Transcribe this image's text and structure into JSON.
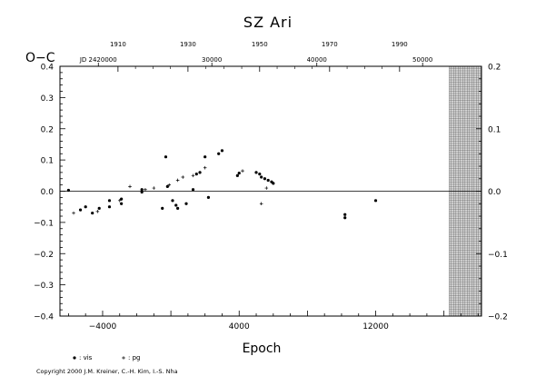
{
  "chart_data": {
    "type": "scatter",
    "title": "SZ Ari",
    "xlabel": "Epoch",
    "ylabel": "O−C",
    "xlim": [
      -6500,
      18200
    ],
    "ylim": [
      -0.4,
      0.4
    ],
    "xticks": [
      {
        "value": -4000,
        "label": "−4000"
      },
      {
        "value": 4000,
        "label": "4000"
      },
      {
        "value": 12000,
        "label": "12000"
      }
    ],
    "yticks_left": [
      {
        "value": 0.4,
        "label": "0.4"
      },
      {
        "value": 0.3,
        "label": "0.3"
      },
      {
        "value": 0.2,
        "label": "0.2"
      },
      {
        "value": 0.1,
        "label": "0.1"
      },
      {
        "value": 0.0,
        "label": "0.0"
      },
      {
        "value": -0.1,
        "label": "−0.1"
      },
      {
        "value": -0.2,
        "label": "−0.2"
      },
      {
        "value": -0.3,
        "label": "−0.3"
      },
      {
        "value": -0.4,
        "label": "−0.4"
      }
    ],
    "yticks_right": [
      {
        "value": 0.2,
        "label": "0.2"
      },
      {
        "value": 0.1,
        "label": "0.1"
      },
      {
        "value": 0.0,
        "label": "0.0"
      },
      {
        "value": -0.1,
        "label": "−0.1"
      },
      {
        "value": -0.2,
        "label": "−0.2"
      }
    ],
    "top_year_ticks": [
      {
        "x": -3100,
        "label": "1910"
      },
      {
        "x": 1000,
        "label": "1930"
      },
      {
        "x": 5200,
        "label": "1950"
      },
      {
        "x": 9300,
        "label": "1970"
      },
      {
        "x": 13400,
        "label": "1990"
      }
    ],
    "jd_labels": [
      {
        "x": -4250,
        "label": "JD 2420000"
      },
      {
        "x": 2400,
        "label": "30000"
      },
      {
        "x": 8550,
        "label": "40000"
      },
      {
        "x": 14750,
        "label": "50000"
      }
    ],
    "shaded_region": [
      16300,
      18200
    ],
    "series": [
      {
        "name": "vis",
        "marker": "dot",
        "points": [
          [
            -6000,
            0.003
          ],
          [
            -5300,
            -0.06
          ],
          [
            -5000,
            -0.05
          ],
          [
            -4600,
            -0.07
          ],
          [
            -4200,
            -0.055
          ],
          [
            -3600,
            -0.05
          ],
          [
            -3600,
            -0.03
          ],
          [
            -2900,
            -0.04
          ],
          [
            -2900,
            -0.025
          ],
          [
            -1700,
            -0.003
          ],
          [
            -1700,
            0.005
          ],
          [
            -500,
            -0.055
          ],
          [
            -300,
            0.11
          ],
          [
            -200,
            0.015
          ],
          [
            100,
            -0.03
          ],
          [
            300,
            -0.045
          ],
          [
            400,
            -0.055
          ],
          [
            900,
            -0.04
          ],
          [
            1300,
            0.005
          ],
          [
            1500,
            0.055
          ],
          [
            1700,
            0.06
          ],
          [
            2000,
            0.11
          ],
          [
            2200,
            -0.02
          ],
          [
            2800,
            0.12
          ],
          [
            3000,
            0.13
          ],
          [
            3900,
            0.05
          ],
          [
            4000,
            0.058
          ],
          [
            5000,
            0.06
          ],
          [
            5200,
            0.055
          ],
          [
            5300,
            0.045
          ],
          [
            5500,
            0.04
          ],
          [
            5700,
            0.035
          ],
          [
            5900,
            0.03
          ],
          [
            6000,
            0.025
          ],
          [
            10200,
            -0.075
          ],
          [
            10200,
            -0.085
          ],
          [
            12000,
            -0.03
          ]
        ]
      },
      {
        "name": "pg",
        "marker": "plus",
        "points": [
          [
            -5700,
            -0.07
          ],
          [
            -4300,
            -0.065
          ],
          [
            -3000,
            -0.03
          ],
          [
            -2400,
            0.015
          ],
          [
            -1500,
            0.005
          ],
          [
            -1000,
            0.01
          ],
          [
            -100,
            0.02
          ],
          [
            400,
            0.035
          ],
          [
            700,
            0.045
          ],
          [
            1300,
            0.05
          ],
          [
            2000,
            0.075
          ],
          [
            4200,
            0.065
          ],
          [
            5300,
            -0.04
          ],
          [
            5600,
            0.01
          ]
        ]
      }
    ],
    "legend": [
      {
        "marker": "dot",
        "label": ": vis"
      },
      {
        "marker": "plus",
        "label": ": pg"
      }
    ],
    "grid": false
  },
  "footer": {
    "copyright": "Copyright 2000 J.M. Kreiner, C.-H. Kim, I.-S. Nha"
  }
}
